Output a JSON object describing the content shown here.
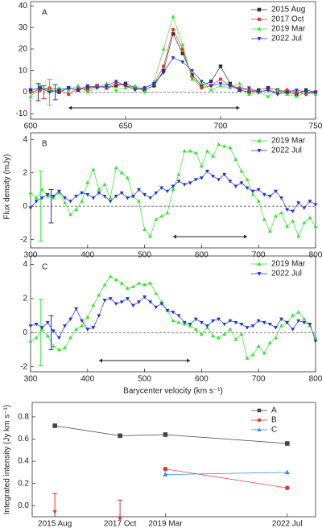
{
  "chart_data": [
    {
      "type": "line",
      "panel_label": "A",
      "xlim": [
        600,
        750
      ],
      "xticks": [
        600,
        650,
        700,
        750
      ],
      "ylim": [
        -12.5,
        42
      ],
      "yticks": [
        -10,
        0,
        10,
        20,
        30,
        40
      ],
      "zero_line": true,
      "velocity_range": [
        620,
        710
      ],
      "x": [
        600,
        605,
        610,
        615,
        620,
        625,
        630,
        635,
        640,
        645,
        650,
        655,
        660,
        665,
        670,
        675,
        680,
        685,
        690,
        695,
        700,
        705,
        710,
        715,
        720,
        725,
        730,
        735,
        740,
        745,
        750
      ],
      "series": [
        {
          "name": "2015 Aug",
          "color": "#333333",
          "marker": "square",
          "error_x": 604,
          "error": 4,
          "values": [
            1,
            2,
            1,
            0,
            2,
            1,
            2,
            3,
            2,
            3,
            4,
            2,
            1,
            3,
            10,
            27,
            18,
            8,
            3,
            5,
            12,
            4,
            1,
            0,
            1,
            2,
            1,
            0,
            -1,
            1,
            0
          ]
        },
        {
          "name": "2017 Oct",
          "color": "#e8322b",
          "marker": "circle",
          "error_x": 607,
          "error": 3,
          "values": [
            0,
            1,
            2,
            1,
            -1,
            2,
            1,
            3,
            2,
            4,
            3,
            2,
            2,
            4,
            12,
            29,
            20,
            7,
            2,
            3,
            6,
            3,
            2,
            1,
            0,
            1,
            0,
            1,
            0,
            -1,
            0
          ]
        },
        {
          "name": "2019 Mar",
          "color": "#2ee82e",
          "marker": "triangle-up",
          "error_x": 610,
          "error": 6,
          "values": [
            -2,
            3,
            1,
            2,
            1,
            3,
            0,
            2,
            4,
            1,
            2,
            3,
            0,
            5,
            20,
            35,
            22,
            6,
            4,
            1,
            3,
            2,
            4,
            -1,
            0,
            -2,
            1,
            -1,
            -2,
            0,
            -1
          ]
        },
        {
          "name": "2022 Jul",
          "color": "#1f2fe0",
          "marker": "triangle-down",
          "error_x": 613,
          "error": 3.5,
          "values": [
            1,
            2,
            0,
            1,
            2,
            1,
            3,
            2,
            3,
            5,
            3,
            1,
            2,
            4,
            9,
            16,
            14,
            10,
            5,
            3,
            4,
            3,
            1,
            2,
            0,
            1,
            -1,
            0,
            1,
            0,
            0
          ]
        }
      ]
    },
    {
      "type": "line",
      "panel_label": "B",
      "ylabel": "Flux density (mJy)",
      "xlim": [
        300,
        800
      ],
      "xticks": [
        300,
        400,
        500,
        600,
        700,
        800
      ],
      "ylim": [
        -2.5,
        4.4
      ],
      "yticks": [
        -2,
        0,
        2,
        4
      ],
      "zero_line": true,
      "velocity_range": [
        550,
        680
      ],
      "x": [
        300,
        310,
        320,
        330,
        340,
        350,
        360,
        370,
        380,
        390,
        400,
        410,
        420,
        430,
        440,
        450,
        460,
        470,
        480,
        490,
        500,
        510,
        520,
        530,
        540,
        550,
        560,
        570,
        580,
        590,
        600,
        610,
        620,
        630,
        640,
        650,
        660,
        670,
        680,
        690,
        700,
        710,
        720,
        730,
        740,
        750,
        760,
        770,
        780,
        790,
        800
      ],
      "series": [
        {
          "name": "2019 Mar",
          "color": "#2ee82e",
          "marker": "triangle-up",
          "error_x": 318,
          "error": 2.1,
          "values": [
            0.8,
            0.5,
            1.0,
            0.6,
            0.5,
            0.8,
            0.2,
            -0.5,
            -0.2,
            0.3,
            1.4,
            2.2,
            1.0,
            1.3,
            0.5,
            2.3,
            2.0,
            1.7,
            0.6,
            0.3,
            -1.4,
            -1.8,
            -0.8,
            -0.6,
            -0.4,
            1.0,
            1.9,
            3.3,
            3.3,
            3.2,
            2.4,
            3.3,
            3.0,
            3.7,
            3.6,
            3.5,
            2.8,
            2.1,
            1.6,
            0.7,
            0.3,
            -0.8,
            -1.5,
            -0.6,
            -0.4,
            -1.2,
            -0.9,
            -1.8,
            -1.0,
            -0.7,
            -1.2
          ]
        },
        {
          "name": "2022 Jul",
          "color": "#1f2fe0",
          "marker": "triangle-down",
          "error_x": 336,
          "error": 1,
          "values": [
            -0.1,
            0.3,
            0.5,
            0.7,
            0.6,
            0.9,
            0.5,
            0.3,
            0.6,
            0.8,
            0.7,
            0.5,
            0.8,
            0.6,
            0.3,
            0.6,
            0.8,
            0.5,
            0.6,
            1.0,
            0.7,
            0.5,
            0.8,
            1.1,
            0.9,
            1.2,
            1.5,
            1.3,
            1.4,
            1.6,
            1.7,
            2.1,
            1.8,
            1.6,
            1.9,
            1.5,
            1.2,
            1.4,
            1.1,
            0.9,
            1.0,
            0.7,
            0.6,
            0.9,
            0.5,
            -0.2,
            -0.3,
            0.2,
            -0.1,
            0.3,
            0.1
          ]
        }
      ]
    },
    {
      "type": "line",
      "panel_label": "C",
      "xlabel": "Barycenter velocity (km s⁻¹)",
      "xlim": [
        300,
        800
      ],
      "xticks": [
        300,
        400,
        500,
        600,
        700,
        800
      ],
      "ylim": [
        -2.3,
        4.5
      ],
      "yticks": [
        -2,
        0,
        2,
        4
      ],
      "zero_line": true,
      "velocity_range": [
        420,
        580
      ],
      "x": [
        300,
        310,
        320,
        330,
        340,
        350,
        360,
        370,
        380,
        390,
        400,
        410,
        420,
        430,
        440,
        450,
        460,
        470,
        480,
        490,
        500,
        510,
        520,
        530,
        540,
        550,
        560,
        570,
        580,
        590,
        600,
        610,
        620,
        630,
        640,
        650,
        660,
        670,
        680,
        690,
        700,
        710,
        720,
        730,
        740,
        750,
        760,
        770,
        780,
        790,
        800
      ],
      "series": [
        {
          "name": "2019 Mar",
          "color": "#2ee82e",
          "marker": "triangle-up",
          "error_x": 318,
          "error": 1.95,
          "values": [
            -0.5,
            -0.3,
            0.2,
            -0.2,
            -0.8,
            -1.0,
            -0.9,
            -0.3,
            0.2,
            0.4,
            0.9,
            1.6,
            2.2,
            2.8,
            3.3,
            3.1,
            2.9,
            2.6,
            2.7,
            2.9,
            2.8,
            2.9,
            2.3,
            1.8,
            1.3,
            0.7,
            0.6,
            0.5,
            0.4,
            0.2,
            -0.1,
            0.3,
            -0.2,
            -0.3,
            -0.1,
            0.2,
            -0.4,
            -0.1,
            -1.5,
            -1.3,
            -0.8,
            -1.2,
            -0.6,
            -0.3,
            0.4,
            0.6,
            1.0,
            1.2,
            0.8,
            0.4,
            -0.3
          ]
        },
        {
          "name": "2022 Jul",
          "color": "#1f2fe0",
          "marker": "triangle-down",
          "error_x": 336,
          "error": 1,
          "values": [
            0.4,
            0.5,
            0.3,
            0.6,
            0.1,
            -0.3,
            0.4,
            0.8,
            1.4,
            0.7,
            0.2,
            0.3,
            1.0,
            1.9,
            2.0,
            1.7,
            1.8,
            2.0,
            1.6,
            1.8,
            2.1,
            1.8,
            1.5,
            1.7,
            1.3,
            1.2,
            1.0,
            0.6,
            0.5,
            0.8,
            0.6,
            0.4,
            0.7,
            0.8,
            0.5,
            0.7,
            0.6,
            0.5,
            0.3,
            0.4,
            0.7,
            0.6,
            0.5,
            0.3,
            0.8,
            0.6,
            0.2,
            0.7,
            0.6,
            0.5,
            -0.5
          ]
        }
      ]
    },
    {
      "type": "line",
      "ylabel": "Integrated intensity (Jy km s⁻¹)",
      "categories": [
        "2015 Aug",
        "2017 Oct",
        "2019 Mar",
        "2022 Jul"
      ],
      "ylim": [
        -0.1,
        0.93
      ],
      "yticks": [
        {
          "value": 0,
          "label": "0.0"
        },
        0.2,
        0.4,
        0.6,
        0.8
      ],
      "upper_limits": [
        0.11,
        0.05,
        null,
        null
      ],
      "upper_limit_color": "#e8322b",
      "series": [
        {
          "name": "A",
          "color": "#444444",
          "marker": "square",
          "values": [
            0.72,
            0.63,
            0.64,
            0.56
          ]
        },
        {
          "name": "B",
          "color": "#e8322b",
          "marker": "circle",
          "values": [
            null,
            null,
            0.33,
            0.16
          ]
        },
        {
          "name": "C",
          "color": "#2f8fe8",
          "marker": "triangle-up",
          "values": [
            null,
            null,
            0.28,
            0.3
          ]
        }
      ]
    }
  ]
}
